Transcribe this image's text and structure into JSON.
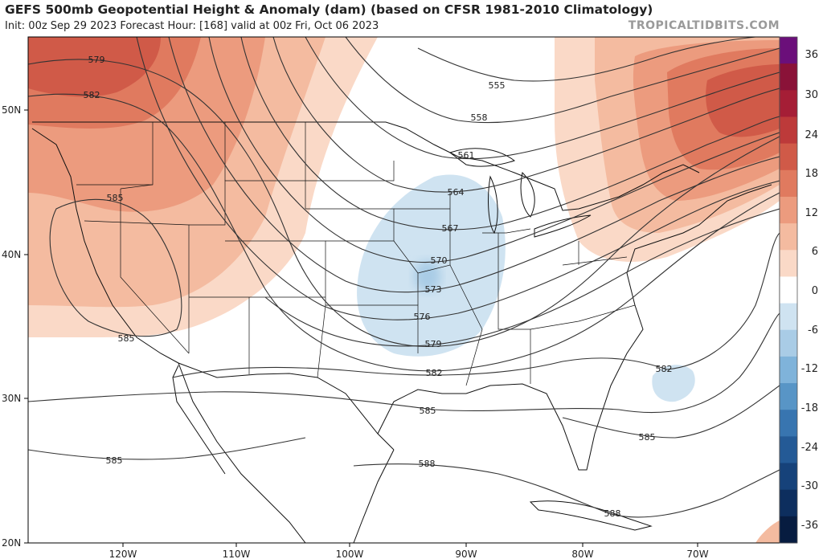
{
  "header": {
    "title": "GEFS 500mb Geopotential Height & Anomaly (dam) (based on CFSR 1981-2010 Climatology)",
    "subtitle": "Init: 00z Sep 29 2023   Forecast Hour: [168]   valid at 00z Fri, Oct 06 2023",
    "brand": "TROPICALTIDBITS.COM"
  },
  "map": {
    "lat_labels": [
      "50N",
      "40N",
      "30N",
      "20N"
    ],
    "lon_labels": [
      "120W",
      "110W",
      "100W",
      "90W",
      "80W",
      "70W"
    ],
    "contour_labels": [
      {
        "value": "579",
        "id": "579-west"
      },
      {
        "value": "582",
        "id": "582-west"
      },
      {
        "value": "585",
        "id": "585-west"
      },
      {
        "value": "585",
        "id": "585-baja"
      },
      {
        "value": "555",
        "id": "555"
      },
      {
        "value": "558",
        "id": "558"
      },
      {
        "value": "561",
        "id": "561"
      },
      {
        "value": "564",
        "id": "564"
      },
      {
        "value": "567",
        "id": "567"
      },
      {
        "value": "570",
        "id": "570"
      },
      {
        "value": "573",
        "id": "573"
      },
      {
        "value": "576",
        "id": "576"
      },
      {
        "value": "579",
        "id": "579-south"
      },
      {
        "value": "582",
        "id": "582-gulf"
      },
      {
        "value": "582",
        "id": "582-atlantic"
      },
      {
        "value": "585",
        "id": "585-gulf"
      },
      {
        "value": "585",
        "id": "585-atlantic"
      },
      {
        "value": "585",
        "id": "585-pacific"
      },
      {
        "value": "588",
        "id": "588-gulf"
      },
      {
        "value": "588",
        "id": "588-caribbean"
      }
    ]
  },
  "colorbar": {
    "labels": [
      "36",
      "30",
      "24",
      "18",
      "12",
      "6",
      "0",
      "-6",
      "-12",
      "-18",
      "-24",
      "-30",
      "-36"
    ],
    "colors": [
      "#6b0f7a",
      "#8a1238",
      "#a51e36",
      "#bd3a3a",
      "#d05a48",
      "#e07a5f",
      "#ec9b7e",
      "#f4bba0",
      "#fad9c7",
      "#ffffff",
      "#cfe3f1",
      "#a9cce6",
      "#7fb3da",
      "#5895c6",
      "#3875b0",
      "#245a96",
      "#16427a",
      "#0d2e5e",
      "#071c40"
    ]
  }
}
